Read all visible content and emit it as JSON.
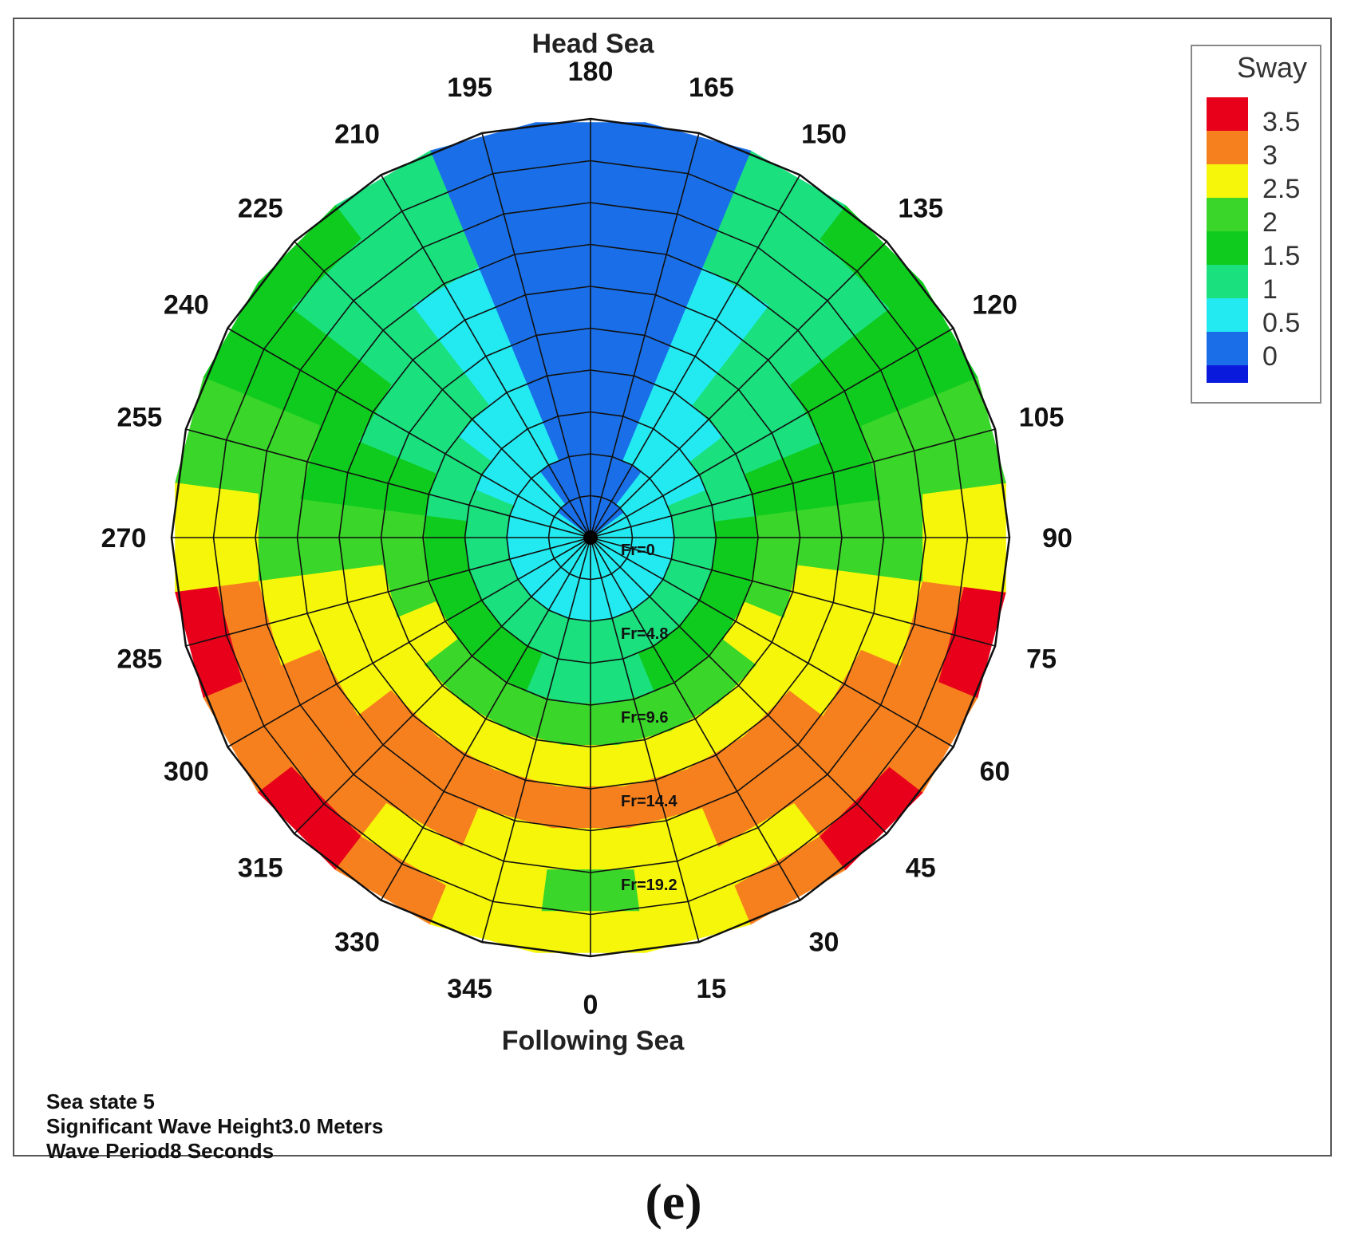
{
  "chart_data": {
    "type": "heatmap",
    "subtype": "polar-contour",
    "top_label": "Head Sea",
    "bottom_label": "Following Sea",
    "angle_labels": [
      "0",
      "15",
      "30",
      "45",
      "60",
      "75",
      "90",
      "105",
      "120",
      "135",
      "150",
      "165",
      "180",
      "195",
      "210",
      "225",
      "240",
      "255",
      "270",
      "285",
      "300",
      "315",
      "330",
      "345"
    ],
    "ring_labels": [
      "Fr=0",
      "Fr=4.8",
      "Fr=9.6",
      "Fr=14.4",
      "Fr=19.2"
    ],
    "legend": {
      "title": "Sway",
      "ticks": [
        "3.5",
        "3",
        "2.5",
        "2",
        "1.5",
        "1",
        "0.5",
        "0"
      ],
      "colors": [
        "#e8001a",
        "#f7801e",
        "#f6f60a",
        "#3ad62a",
        "#0fcb1e",
        "#1ae07e",
        "#22eaf0",
        "#1a6fe8",
        "#0a1adc"
      ]
    },
    "headings_deg": [
      0,
      15,
      30,
      45,
      60,
      75,
      90,
      105,
      120,
      135,
      150,
      165,
      180,
      195,
      210,
      225,
      240,
      255,
      270,
      285,
      300,
      315,
      330,
      345
    ],
    "speed_steps": 10,
    "values": [
      [
        0.7,
        0.8,
        1.0,
        1.4,
        2.0,
        2.8,
        3.1,
        2.6,
        2.2,
        2.7
      ],
      [
        0.7,
        0.8,
        1.0,
        1.4,
        2.0,
        2.8,
        3.1,
        2.8,
        2.6,
        2.9
      ],
      [
        0.7,
        0.8,
        1.1,
        1.5,
        2.1,
        2.8,
        3.1,
        3.0,
        2.9,
        3.1
      ],
      [
        0.7,
        0.9,
        1.2,
        1.7,
        2.3,
        2.9,
        3.1,
        3.1,
        3.2,
        3.5
      ],
      [
        0.7,
        0.9,
        1.3,
        1.9,
        2.5,
        2.8,
        2.9,
        3.1,
        3.3,
        3.2
      ],
      [
        0.7,
        0.9,
        1.3,
        1.9,
        2.4,
        2.5,
        2.6,
        2.9,
        3.2,
        3.6
      ],
      [
        0.7,
        0.9,
        1.3,
        1.8,
        2.1,
        2.1,
        2.2,
        2.4,
        2.7,
        2.9
      ],
      [
        0.6,
        0.8,
        1.1,
        1.4,
        1.7,
        1.8,
        1.9,
        2.0,
        2.2,
        2.3
      ],
      [
        0.5,
        0.7,
        0.9,
        1.1,
        1.3,
        1.4,
        1.5,
        1.6,
        1.7,
        1.8
      ],
      [
        0.4,
        0.6,
        0.7,
        0.9,
        1.0,
        1.1,
        1.2,
        1.3,
        1.4,
        1.5
      ],
      [
        0.3,
        0.4,
        0.5,
        0.7,
        0.8,
        0.9,
        0.9,
        1.0,
        1.0,
        1.0
      ],
      [
        0.2,
        0.3,
        0.3,
        0.4,
        0.4,
        0.4,
        0.4,
        0.4,
        0.4,
        0.4
      ],
      [
        0.2,
        0.2,
        0.3,
        0.3,
        0.3,
        0.3,
        0.3,
        0.3,
        0.3,
        0.3
      ],
      [
        0.2,
        0.3,
        0.3,
        0.4,
        0.4,
        0.4,
        0.4,
        0.4,
        0.4,
        0.4
      ],
      [
        0.3,
        0.4,
        0.5,
        0.7,
        0.8,
        0.9,
        0.9,
        1.0,
        1.0,
        1.0
      ],
      [
        0.4,
        0.6,
        0.7,
        0.9,
        1.0,
        1.1,
        1.2,
        1.3,
        1.4,
        1.5
      ],
      [
        0.5,
        0.7,
        0.9,
        1.1,
        1.3,
        1.4,
        1.5,
        1.6,
        1.7,
        1.8
      ],
      [
        0.6,
        0.8,
        1.1,
        1.4,
        1.7,
        1.8,
        1.9,
        2.0,
        2.2,
        2.3
      ],
      [
        0.7,
        0.9,
        1.3,
        1.8,
        2.1,
        2.1,
        2.2,
        2.4,
        2.7,
        2.9
      ],
      [
        0.7,
        0.9,
        1.3,
        1.9,
        2.4,
        2.5,
        2.6,
        2.9,
        3.2,
        3.6
      ],
      [
        0.7,
        0.9,
        1.3,
        1.9,
        2.5,
        2.8,
        2.9,
        3.1,
        3.3,
        3.2
      ],
      [
        0.7,
        0.9,
        1.2,
        1.7,
        2.3,
        2.9,
        3.1,
        3.1,
        3.2,
        3.5
      ],
      [
        0.7,
        0.8,
        1.1,
        1.5,
        2.1,
        2.8,
        3.1,
        3.0,
        2.9,
        3.1
      ],
      [
        0.7,
        0.8,
        1.0,
        1.4,
        2.0,
        2.8,
        3.1,
        2.8,
        2.6,
        2.9
      ]
    ]
  },
  "notes": {
    "line1": "Sea state 5",
    "line2": "Significant Wave Height3.0 Meters",
    "line3": "Wave Period8 Seconds"
  },
  "caption": "(e)"
}
